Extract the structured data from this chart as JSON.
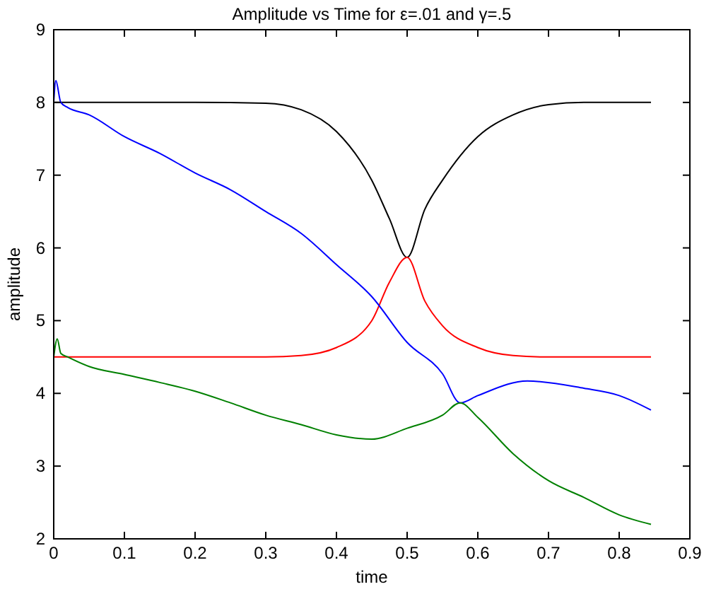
{
  "chart_data": {
    "type": "line",
    "title": "Amplitude vs Time for ε=.01 and γ=.5",
    "xlabel": "time",
    "ylabel": "amplitude",
    "xlim": [
      0,
      0.9
    ],
    "ylim": [
      2,
      9
    ],
    "xticks": [
      0,
      0.1,
      0.2,
      0.3,
      0.4,
      0.5,
      0.6,
      0.7,
      0.8,
      0.9
    ],
    "yticks": [
      2,
      3,
      4,
      5,
      6,
      7,
      8,
      9
    ],
    "grid": false,
    "marker": "none",
    "line_style": "solid",
    "series": [
      {
        "color": "#000000",
        "x": [
          0,
          0.1,
          0.2,
          0.3,
          0.35,
          0.4,
          0.45,
          0.475,
          0.5,
          0.525,
          0.55,
          0.6,
          0.65,
          0.7,
          0.75,
          0.845
        ],
        "values": [
          8,
          8,
          8,
          7.99,
          7.9,
          7.6,
          6.93,
          6.4,
          5.87,
          6.53,
          6.93,
          7.53,
          7.83,
          7.97,
          8,
          8
        ]
      },
      {
        "color": "#ff0000",
        "x": [
          0,
          0.1,
          0.2,
          0.3,
          0.35,
          0.4,
          0.45,
          0.475,
          0.5,
          0.525,
          0.55,
          0.6,
          0.65,
          0.7,
          0.845
        ],
        "values": [
          4.5,
          4.5,
          4.5,
          4.5,
          4.52,
          4.63,
          5.0,
          5.53,
          5.87,
          5.27,
          4.93,
          4.63,
          4.52,
          4.5,
          4.5
        ]
      },
      {
        "color": "#0000ff",
        "x": [
          0,
          0.003,
          0.01,
          0.02,
          0.05,
          0.1,
          0.15,
          0.2,
          0.25,
          0.3,
          0.35,
          0.4,
          0.45,
          0.5,
          0.55,
          0.575,
          0.6,
          0.67,
          0.75,
          0.8,
          0.845
        ],
        "values": [
          8.0,
          8.3,
          8.0,
          7.93,
          7.83,
          7.53,
          7.3,
          7.03,
          6.8,
          6.5,
          6.2,
          5.77,
          5.33,
          4.7,
          4.27,
          3.87,
          3.97,
          4.17,
          4.07,
          3.97,
          3.77
        ]
      },
      {
        "color": "#008000",
        "x": [
          0,
          0.005,
          0.01,
          0.02,
          0.05,
          0.1,
          0.15,
          0.2,
          0.25,
          0.3,
          0.35,
          0.4,
          0.45,
          0.5,
          0.55,
          0.575,
          0.6,
          0.65,
          0.7,
          0.75,
          0.8,
          0.845
        ],
        "values": [
          4.5,
          4.75,
          4.55,
          4.5,
          4.37,
          4.26,
          4.15,
          4.03,
          3.87,
          3.7,
          3.57,
          3.43,
          3.37,
          3.52,
          3.7,
          3.87,
          3.67,
          3.17,
          2.8,
          2.57,
          2.33,
          2.2
        ]
      }
    ]
  }
}
